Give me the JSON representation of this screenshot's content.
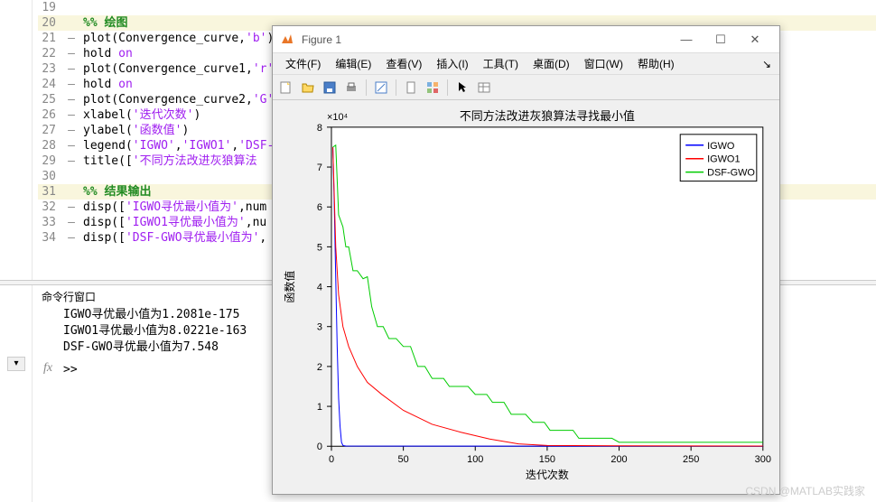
{
  "editor": {
    "lines": [
      {
        "n": 19,
        "dash": "",
        "section": false,
        "html": ""
      },
      {
        "n": 20,
        "dash": "",
        "section": true,
        "html": "<span class='cmt-green'>%% 绘图</span>"
      },
      {
        "n": 21,
        "dash": "—",
        "section": false,
        "html": "plot(Convergence_curve,<span class='str-purple'>'b'</span>)"
      },
      {
        "n": 22,
        "dash": "—",
        "section": false,
        "html": "hold <span class='str-purple'>on</span>"
      },
      {
        "n": 23,
        "dash": "—",
        "section": false,
        "html": "plot(Convergence_curve1,<span class='str-purple'>'r'</span>"
      },
      {
        "n": 24,
        "dash": "—",
        "section": false,
        "html": "hold <span class='str-purple'>on</span>"
      },
      {
        "n": 25,
        "dash": "—",
        "section": false,
        "html": "plot(Convergence_curve2,<span class='str-purple'>'G'</span>"
      },
      {
        "n": 26,
        "dash": "—",
        "section": false,
        "html": "xlabel(<span class='str-purple'>'迭代次数'</span>)"
      },
      {
        "n": 27,
        "dash": "—",
        "section": false,
        "html": "ylabel(<span class='str-purple'>'函数值'</span>)"
      },
      {
        "n": 28,
        "dash": "—",
        "section": false,
        "html": "legend(<span class='str-purple'>'IGWO'</span>,<span class='str-purple'>'IGWO1'</span>,<span class='str-purple'>'DSF-</span>"
      },
      {
        "n": 29,
        "dash": "—",
        "section": false,
        "html": "title([<span class='str-purple'>'不同方法改进灰狼算法</span>"
      },
      {
        "n": 30,
        "dash": "",
        "section": false,
        "html": ""
      },
      {
        "n": 31,
        "dash": "",
        "section": true,
        "html": "<span class='cmt-green'>%% 结果输出</span>"
      },
      {
        "n": 32,
        "dash": "—",
        "section": false,
        "html": "disp([<span class='str-purple'>'IGWO寻优最小值为'</span>,num"
      },
      {
        "n": 33,
        "dash": "—",
        "section": false,
        "html": "disp([<span class='str-purple'>'IGWO1寻优最小值为'</span>,nu"
      },
      {
        "n": 34,
        "dash": "—",
        "section": false,
        "html": "disp([<span class='str-purple'>'DSF-GWO寻优最小值为'</span>,"
      }
    ]
  },
  "cmd_title": "命令行窗口",
  "cmd_output": [
    "IGWO寻优最小值为1.2081e-175",
    "IGWO1寻优最小值为8.0221e-163",
    "DSF-GWO寻优最小值为7.548"
  ],
  "fx": "fx",
  "prompt": ">>",
  "collapse": "▾",
  "figure": {
    "title": "Figure 1",
    "win_buttons": {
      "min": "—",
      "max": "☐",
      "close": "✕"
    },
    "menus": [
      "文件(F)",
      "编辑(E)",
      "查看(V)",
      "插入(I)",
      "工具(T)",
      "桌面(D)",
      "窗口(W)",
      "帮助(H)"
    ],
    "menu_end": "↘",
    "chart": {
      "title": "不同方法改进灰狼算法寻找最小值",
      "xlabel": "迭代次数",
      "ylabel": "函数值",
      "exponent": "×10⁴",
      "xlim": [
        0,
        300
      ],
      "ylim": [
        0,
        8
      ],
      "xticks": [
        0,
        50,
        100,
        150,
        200,
        250,
        300
      ],
      "yticks": [
        0,
        1,
        2,
        3,
        4,
        5,
        6,
        7,
        8
      ],
      "legend": [
        "IGWO",
        "IGWO1",
        "DSF-GWO"
      ],
      "colors": {
        "IGWO": "#0000ff",
        "IGWO1": "#ff0000",
        "DSF-GWO": "#00cc00",
        "axis": "#000",
        "bg": "#ffffff"
      },
      "series": {
        "IGWO": [
          [
            1,
            7.5
          ],
          [
            2,
            6.0
          ],
          [
            3,
            4.2
          ],
          [
            4,
            2.5
          ],
          [
            5,
            1.2
          ],
          [
            6,
            0.5
          ],
          [
            7,
            0.1
          ],
          [
            8,
            0.02
          ],
          [
            10,
            0.005
          ],
          [
            300,
            0.001
          ]
        ],
        "IGWO1": [
          [
            1,
            7.5
          ],
          [
            3,
            5.0
          ],
          [
            5,
            3.8
          ],
          [
            8,
            3.0
          ],
          [
            12,
            2.5
          ],
          [
            18,
            2.0
          ],
          [
            25,
            1.6
          ],
          [
            35,
            1.3
          ],
          [
            50,
            0.9
          ],
          [
            70,
            0.55
          ],
          [
            90,
            0.35
          ],
          [
            110,
            0.18
          ],
          [
            130,
            0.06
          ],
          [
            150,
            0.02
          ],
          [
            200,
            0.01
          ],
          [
            300,
            0.005
          ]
        ],
        "DSF-GWO": [
          [
            1,
            7.5
          ],
          [
            3,
            7.55
          ],
          [
            5,
            5.8
          ],
          [
            8,
            5.5
          ],
          [
            10,
            5.0
          ],
          [
            12,
            5.0
          ],
          [
            15,
            4.4
          ],
          [
            18,
            4.4
          ],
          [
            22,
            4.2
          ],
          [
            25,
            4.25
          ],
          [
            28,
            3.5
          ],
          [
            32,
            3.0
          ],
          [
            36,
            3.0
          ],
          [
            40,
            2.7
          ],
          [
            45,
            2.7
          ],
          [
            50,
            2.5
          ],
          [
            55,
            2.5
          ],
          [
            60,
            2.0
          ],
          [
            65,
            2.0
          ],
          [
            70,
            1.7
          ],
          [
            78,
            1.7
          ],
          [
            82,
            1.5
          ],
          [
            95,
            1.5
          ],
          [
            100,
            1.3
          ],
          [
            108,
            1.3
          ],
          [
            112,
            1.1
          ],
          [
            120,
            1.1
          ],
          [
            125,
            0.8
          ],
          [
            135,
            0.8
          ],
          [
            140,
            0.6
          ],
          [
            148,
            0.6
          ],
          [
            152,
            0.4
          ],
          [
            168,
            0.4
          ],
          [
            172,
            0.2
          ],
          [
            195,
            0.2
          ],
          [
            200,
            0.1
          ],
          [
            300,
            0.1
          ]
        ]
      }
    }
  },
  "watermark": "CSDN @MATLAB实践家"
}
